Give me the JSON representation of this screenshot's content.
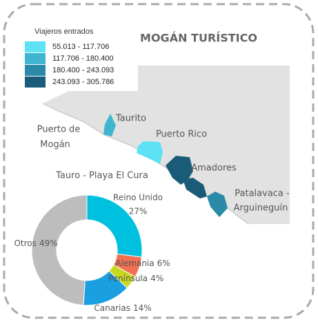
{
  "title": "MOGÁN TURÍSTICO",
  "legend": {
    "title": "Viajeros entrados",
    "items": [
      {
        "label": "55.013 - 117.706",
        "color": "#5ce1f5"
      },
      {
        "label": "117.706 - 180.400",
        "color": "#3fb5d0"
      },
      {
        "label": "180.400 - 243.093",
        "color": "#2a8aa8"
      },
      {
        "label": "243.093 - 305.786",
        "color": "#1a5c78"
      }
    ]
  },
  "places": [
    "Taurito",
    "Puerto de",
    "Mogán",
    "Puerto Rico",
    "Tauro - Playa El Cura",
    "Amadores",
    "Patalavaca -",
    "Arguineguín"
  ],
  "chart_data": {
    "type": "donut",
    "categories": [
      "Reino Unido",
      "Alemania",
      "Península",
      "Canarias",
      "Otros"
    ],
    "values": [
      27,
      6,
      4,
      14,
      49
    ],
    "value_labels": [
      "27%",
      "6%",
      "4%",
      "14%",
      "49%"
    ],
    "colors": [
      "#00c0e0",
      "#f07050",
      "#c8d820",
      "#1aa0e0",
      "#bdbdbd"
    ]
  }
}
